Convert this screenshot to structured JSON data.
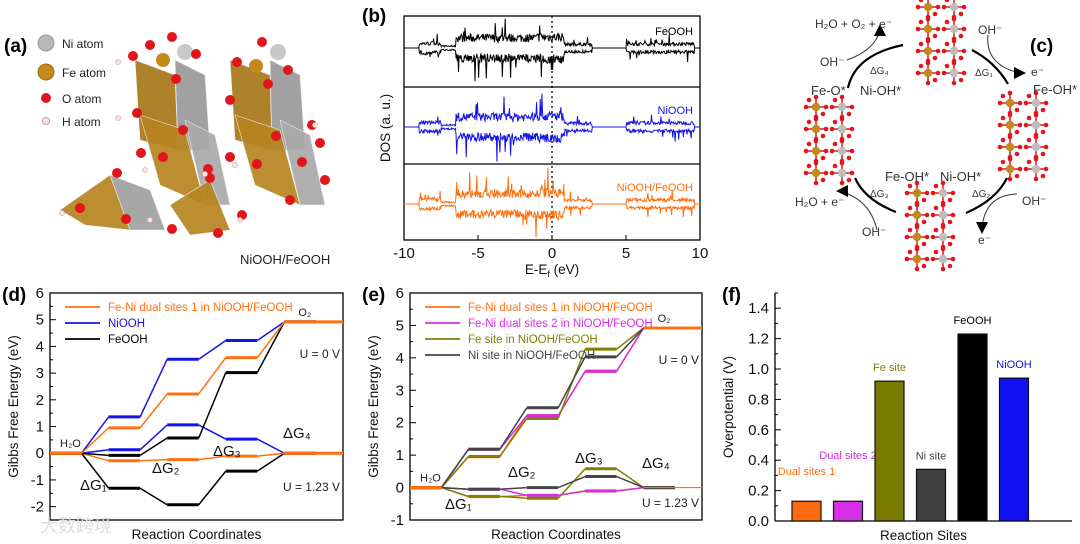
{
  "panels": {
    "a": {
      "label": "(a)",
      "legend": [
        {
          "name": "Ni atom",
          "color": "#b8b8b8"
        },
        {
          "name": "Fe atom",
          "color": "#c28a1c"
        },
        {
          "name": "O atom",
          "color": "#e0161b"
        },
        {
          "name": "H atom",
          "color": "#f2dcdc"
        }
      ],
      "caption": "NiOOH/FeOOH"
    },
    "b": {
      "label": "(b)"
    },
    "c": {
      "label": "(c)",
      "texts": {
        "top_left_product": "H₂O + O₂ + e⁻",
        "oh_left_top": "OH⁻",
        "dg4": "ΔG₄",
        "feo": "Fe-O*",
        "nioh_left": "Ni-OH*",
        "oh_right_top": "OH⁻",
        "e_right_top": "e⁻",
        "dg1": "ΔG₁",
        "feoh_right": "Fe-OH*",
        "feoh_bottom": "Fe-OH*",
        "nioh_bottom": "Ni-OH*",
        "dg2": "ΔG₂",
        "oh_right_bottom": "OH⁻",
        "e_bottom": "e⁻",
        "dg3": "ΔG₃",
        "bottom_left_product": "H₂O + e⁻",
        "oh_bottom_left": "OH⁻"
      }
    },
    "d": {
      "label": "(d)"
    },
    "e": {
      "label": "(e)"
    },
    "f": {
      "label": "(f)"
    }
  },
  "watermark": "大数跨境",
  "chart_data": [
    {
      "id": "b",
      "type": "line",
      "title": "",
      "xlabel_main": "E-E",
      "xlabel_sub": "f",
      "xlabel_tail": " (eV)",
      "ylabel": "DOS (a. u.)",
      "xlim": [
        -10,
        10
      ],
      "xticks": [
        "-10",
        "-5",
        "0",
        "5",
        "10"
      ],
      "xtick_values": [
        -10,
        -5,
        0,
        5,
        10
      ],
      "fermi_line": 0,
      "series": [
        {
          "name": "FeOOH",
          "color": "#000000"
        },
        {
          "name": "NiOOH",
          "color": "#1414e6"
        },
        {
          "name": "NiOOH/FeOOH",
          "color": "#ff7010"
        }
      ]
    },
    {
      "id": "d",
      "type": "line",
      "xlabel": "Reaction Coordinates",
      "ylabel": "Gibbs Free Energy (eV)",
      "ylim": [
        -2.5,
        6
      ],
      "yticks": [
        "-2",
        "-1",
        "0",
        "1",
        "2",
        "3",
        "4",
        "5",
        "6"
      ],
      "ytick_values": [
        -2,
        -1,
        0,
        1,
        2,
        3,
        4,
        5,
        6
      ],
      "stages": 5,
      "annotations": {
        "start": "H₂O",
        "end": "O₂",
        "u0": "U = 0 V",
        "u123": "U = 1.23 V",
        "dg1": "ΔG₁",
        "dg2": "ΔG₂",
        "dg3": "ΔG₃",
        "dg4": "ΔG₄"
      },
      "series": [
        {
          "name": "FeOOH",
          "color": "#000000",
          "u0": [
            0,
            -0.08,
            0.57,
            3.02,
            4.92
          ],
          "u123": [
            0,
            -1.31,
            -1.93,
            -0.67,
            0
          ]
        },
        {
          "name": "NiOOH",
          "color": "#1414e6",
          "u0": [
            0,
            1.36,
            3.52,
            4.22,
            4.92
          ],
          "u123": [
            0,
            0.13,
            1.06,
            0.53,
            0
          ]
        },
        {
          "name": "Fe-Ni dual sites 1 in NiOOH/FeOOH",
          "color": "#ff7010",
          "u0": [
            0,
            0.95,
            2.22,
            3.58,
            4.92
          ],
          "u123": [
            0,
            -0.28,
            -0.24,
            -0.11,
            0
          ]
        }
      ],
      "legend_order": [
        2,
        1,
        0
      ]
    },
    {
      "id": "e",
      "type": "line",
      "xlabel": "Reaction Coordinates",
      "ylabel": "Gibbs Free Energy (eV)",
      "ylim": [
        -1,
        6
      ],
      "yticks": [
        "-1",
        "0",
        "1",
        "2",
        "3",
        "4",
        "5",
        "6"
      ],
      "ytick_values": [
        -1,
        0,
        1,
        2,
        3,
        4,
        5,
        6
      ],
      "stages": 5,
      "annotations": {
        "start": "H₂O",
        "end": "O₂",
        "u0": "U = 0 V",
        "u123": "U = 1.23 V",
        "dg1": "ΔG₁",
        "dg2": "ΔG₂",
        "dg3": "ΔG₃",
        "dg4": "ΔG₄"
      },
      "series": [
        {
          "name": "Fe-Ni dual sites 1 in NiOOH/FeOOH",
          "color": "#ff7010",
          "u0": [
            0,
            0.95,
            2.22,
            3.58,
            4.92
          ],
          "u123": [
            0,
            -0.28,
            -0.24,
            -0.11,
            0
          ]
        },
        {
          "name": "Fe-Ni dual sites 2 in NiOOH/FeOOH",
          "color": "#d42ee6",
          "u0": [
            0,
            1.18,
            2.22,
            3.59,
            4.92
          ],
          "u123": [
            0,
            -0.05,
            -0.24,
            -0.1,
            0
          ]
        },
        {
          "name": "Fe site in NiOOH/FeOOH",
          "color": "#808000",
          "u0": [
            0,
            0.96,
            2.13,
            4.27,
            4.92
          ],
          "u123": [
            0,
            -0.27,
            -0.33,
            0.58,
            0
          ]
        },
        {
          "name": "Ni site in NiOOH/FeOOH",
          "color": "#444444",
          "u0": [
            0,
            1.18,
            2.46,
            4.03,
            4.92
          ],
          "u123": [
            0,
            -0.05,
            0.0,
            0.34,
            0
          ]
        }
      ],
      "legend_order": [
        0,
        1,
        2,
        3
      ]
    },
    {
      "id": "f",
      "type": "bar",
      "xlabel": "Reaction Sites",
      "ylabel": "Overpotential (V)",
      "ylim": [
        0,
        1.5
      ],
      "yticks": [
        "0.0",
        "0.2",
        "0.4",
        "0.6",
        "0.8",
        "1.0",
        "1.2",
        "1.4"
      ],
      "ytick_values": [
        0,
        0.2,
        0.4,
        0.6,
        0.8,
        1.0,
        1.2,
        1.4
      ],
      "categories": [
        "Dual sites 1",
        "Dual sites 2",
        "Fe site",
        "Ni site",
        "FeOOH",
        "NiOOH"
      ],
      "values": [
        0.13,
        0.13,
        0.92,
        0.34,
        1.23,
        0.94
      ],
      "colors": [
        "#ff6a10",
        "#d42ee6",
        "#7a7a00",
        "#404040",
        "#000000",
        "#1010f0"
      ],
      "label_colors": [
        "#ff7010",
        "#d42ee6",
        "#808000",
        "#444444",
        "#000000",
        "#1414e6"
      ]
    }
  ]
}
